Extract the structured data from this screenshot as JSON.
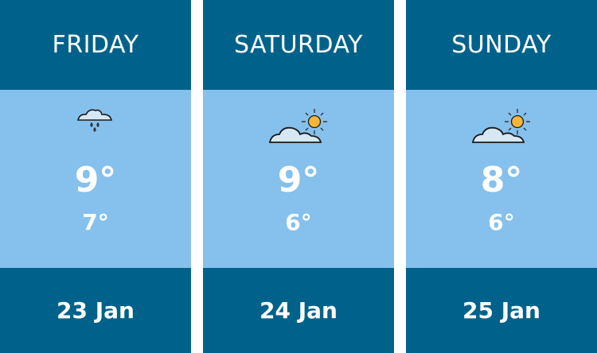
{
  "days": [
    {
      "name": "FRIDAY",
      "icon": "rain-cloud-icon",
      "high": "9°",
      "low": "7°",
      "date": "23 Jan"
    },
    {
      "name": "SATURDAY",
      "icon": "partly-sunny-icon",
      "high": "9°",
      "low": "6°",
      "date": "24 Jan"
    },
    {
      "name": "SUNDAY",
      "icon": "partly-sunny-icon",
      "high": "8°",
      "low": "6°",
      "date": "25 Jan"
    }
  ],
  "colors": {
    "dark": "#00628a",
    "light": "#86c0ec",
    "sun": "#f6b53a",
    "cloud": "#d6e8f7"
  }
}
